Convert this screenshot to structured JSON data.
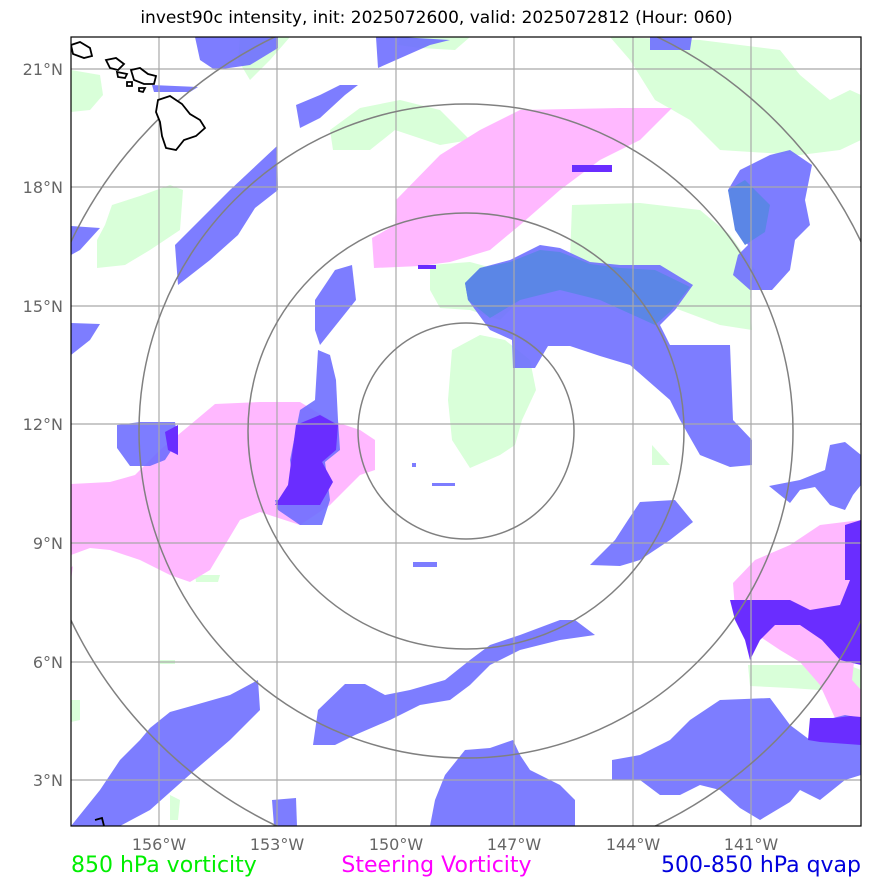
{
  "title": "invest90c intensity, init: 2025072600, valid: 2025072812 (Hour: 060)",
  "legend": {
    "vorticity_850": "850 hPa vorticity",
    "steering_vorticity": "Steering Vorticity",
    "qvap_500_850": "500-850 hPa qvap"
  },
  "lat_ticks": [
    "21°N",
    "18°N",
    "15°N",
    "12°N",
    "9°N",
    "6°N",
    "3°N"
  ],
  "lon_ticks": [
    "156°W",
    "153°W",
    "150°W",
    "147°W",
    "144°W",
    "141°W"
  ],
  "colors": {
    "vorticity_850": "#d9ffd9",
    "steering_vorticity": "#ffb8ff",
    "qvap": "#6b6bff",
    "qvap_dark": "#6a2dff",
    "range_rings": "#808080",
    "grid": "#a9a9a9"
  },
  "map": {
    "center": {
      "lat": 11.9,
      "lon": -148.2
    },
    "extent": {
      "lon_min": -157.9,
      "lon_max": -138.0,
      "lat_min": 1.9,
      "lat_max": 21.9
    },
    "range_rings_deg": [
      2.7,
      5.5,
      8.3,
      11.1
    ],
    "coastline": "Hawaiian Islands"
  }
}
